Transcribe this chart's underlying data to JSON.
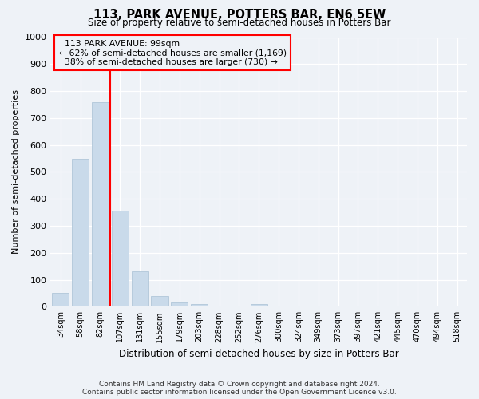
{
  "title": "113, PARK AVENUE, POTTERS BAR, EN6 5EW",
  "subtitle": "Size of property relative to semi-detached houses in Potters Bar",
  "xlabel": "Distribution of semi-detached houses by size in Potters Bar",
  "ylabel": "Number of semi-detached properties",
  "property_label": "113 PARK AVENUE: 99sqm",
  "pct_smaller": 62,
  "count_smaller": 1169,
  "pct_larger": 38,
  "count_larger": 730,
  "bin_labels": [
    "34sqm",
    "58sqm",
    "82sqm",
    "107sqm",
    "131sqm",
    "155sqm",
    "179sqm",
    "203sqm",
    "228sqm",
    "252sqm",
    "276sqm",
    "300sqm",
    "324sqm",
    "349sqm",
    "373sqm",
    "397sqm",
    "421sqm",
    "445sqm",
    "470sqm",
    "494sqm",
    "518sqm"
  ],
  "bar_values": [
    50,
    550,
    760,
    355,
    130,
    40,
    15,
    10,
    0,
    0,
    10,
    0,
    0,
    0,
    0,
    0,
    0,
    0,
    0,
    0,
    0
  ],
  "bar_color": "#c9daea",
  "bar_edge_color": "#a8c0d4",
  "vline_color": "red",
  "ylim": [
    0,
    1000
  ],
  "yticks": [
    0,
    100,
    200,
    300,
    400,
    500,
    600,
    700,
    800,
    900,
    1000
  ],
  "annotation_box_color": "red",
  "footer1": "Contains HM Land Registry data © Crown copyright and database right 2024.",
  "footer2": "Contains public sector information licensed under the Open Government Licence v3.0.",
  "bg_color": "#eef2f7",
  "grid_color": "#ffffff"
}
